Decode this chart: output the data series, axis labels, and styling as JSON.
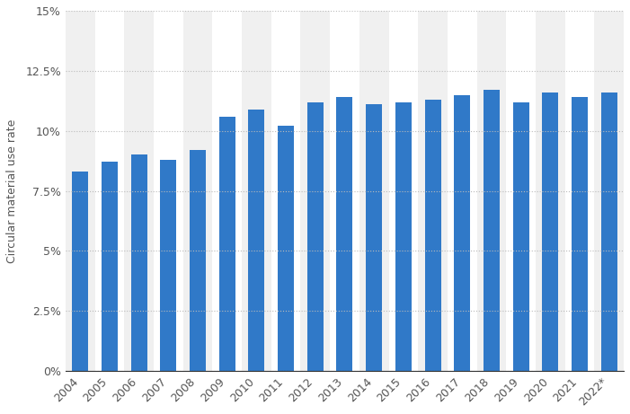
{
  "years": [
    "2004",
    "2005",
    "2006",
    "2007",
    "2008",
    "2009",
    "2010",
    "2011",
    "2012",
    "2013",
    "2014",
    "2015",
    "2016",
    "2017",
    "2018",
    "2019",
    "2020",
    "2021",
    "2022*"
  ],
  "values": [
    8.3,
    8.7,
    9.0,
    8.8,
    9.2,
    10.6,
    10.9,
    10.2,
    11.2,
    11.4,
    11.1,
    11.2,
    11.3,
    11.5,
    11.7,
    11.2,
    11.6,
    11.4,
    11.6
  ],
  "bar_color": "#3079c8",
  "ylabel": "Circular material use rate",
  "ylim": [
    0,
    15
  ],
  "yticks": [
    0,
    2.5,
    5.0,
    7.5,
    10.0,
    12.5,
    15.0
  ],
  "ytick_labels": [
    "0%",
    "2.5%",
    "5%",
    "7.5%",
    "10%",
    "12.5%",
    "15%"
  ],
  "background_color": "#ffffff",
  "plot_bg_color": "#ffffff",
  "alt_col_color": "#f0f0f0",
  "grid_color": "#bbbbbb",
  "bar_width": 0.55,
  "tick_label_fontsize": 9,
  "ylabel_fontsize": 9
}
